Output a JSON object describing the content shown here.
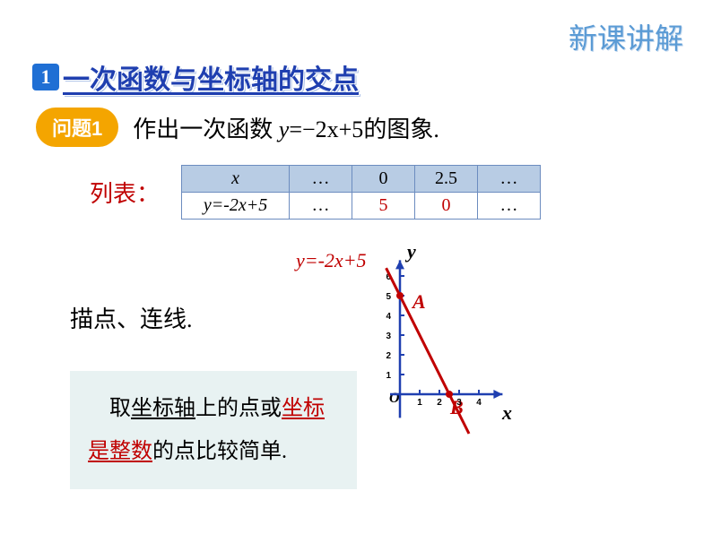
{
  "corner": "新课讲解",
  "heading": {
    "num": "1",
    "text": "一次函数与坐标轴的交点"
  },
  "question": {
    "badge": "问题1",
    "pre": "作出一次函数 ",
    "eq_lhs": "y",
    "eq_rhs": "=−2x+5",
    "post": "的图象."
  },
  "table": {
    "label": "列表：",
    "headers": [
      "x",
      "…",
      "0",
      "2.5",
      "…"
    ],
    "row_label": "y=-2x+5",
    "row": [
      "…",
      "5",
      "0",
      "…"
    ],
    "red_cells": [
      1,
      2
    ],
    "border_color": "#6c8cbf",
    "header_bg": "#b8cce4"
  },
  "step2": "描点、连线.",
  "note": {
    "p1a": "　取",
    "p1b": "坐标轴",
    "p1c": "上的点或",
    "p2a": "坐标是整数",
    "p2b": "的点比较简单."
  },
  "chart": {
    "equation_label": "y=-2x+5",
    "y_label": "y",
    "x_label": "x",
    "origin_label": "O",
    "point_A": "A",
    "point_B": "B",
    "axis_color": "#1f3fb0",
    "line_color": "#c00000",
    "point_fill": "#c00000",
    "y_ticks": [
      1,
      2,
      3,
      4,
      5,
      6
    ],
    "x_ticks": [
      1,
      2,
      3,
      4
    ],
    "line_p1": [
      -0.7,
      6.4
    ],
    "line_p2": [
      3.5,
      -2.0
    ],
    "A_xy": [
      0,
      5
    ],
    "B_xy": [
      2.5,
      0
    ]
  }
}
